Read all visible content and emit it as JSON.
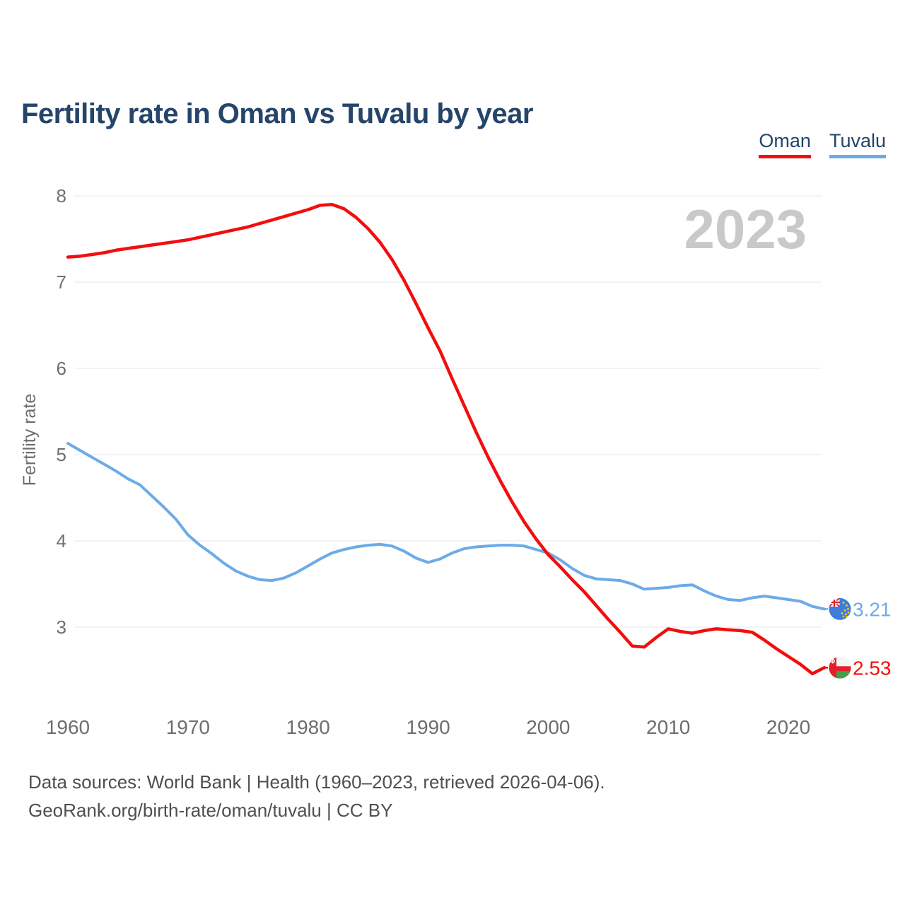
{
  "title": "Fertility rate in Oman vs Tuvalu by year",
  "legend": [
    {
      "label": "Oman",
      "color": "#f40d0d"
    },
    {
      "label": "Tuvalu",
      "color": "#6cabe8"
    }
  ],
  "footer": {
    "line1": "Data sources: World Bank | Health (1960–2023, retrieved 2026-04-06).",
    "line2": "GeoRank.org/birth-rate/oman/tuvalu | CC BY"
  },
  "chart_data": {
    "type": "line",
    "title": "Fertility rate in Oman vs Tuvalu by year",
    "xlabel": "",
    "ylabel": "Fertility rate",
    "watermark": "2023",
    "x_range": [
      1960,
      2023
    ],
    "x_interval": 1,
    "x_ticks": [
      1960,
      1970,
      1980,
      1990,
      2000,
      2010,
      2020
    ],
    "y_ticks": [
      8,
      7,
      6,
      5,
      4,
      3
    ],
    "ylim": [
      2.3,
      8.2
    ],
    "grid": true,
    "legend_position": "top-right",
    "colors": {
      "oman_red": "#f40d0d",
      "tuvalu_blue": "#6cabe8",
      "gridline": "#ececec",
      "axis_text": "#6e6e6e",
      "watermark_gray": "#c9c9c9"
    },
    "series": [
      {
        "name": "Tuvalu",
        "color": "#6cabe8",
        "values": [
          5.13,
          5.05,
          4.97,
          4.89,
          4.81,
          4.72,
          4.65,
          4.52,
          4.39,
          4.25,
          4.07,
          3.95,
          3.85,
          3.74,
          3.65,
          3.59,
          3.55,
          3.54,
          3.57,
          3.63,
          3.71,
          3.79,
          3.86,
          3.9,
          3.93,
          3.95,
          3.96,
          3.94,
          3.88,
          3.8,
          3.75,
          3.79,
          3.86,
          3.91,
          3.93,
          3.94,
          3.95,
          3.95,
          3.94,
          3.9,
          3.86,
          3.78,
          3.68,
          3.6,
          3.56,
          3.55,
          3.54,
          3.5,
          3.44,
          3.45,
          3.46,
          3.48,
          3.49,
          3.42,
          3.36,
          3.32,
          3.31,
          3.34,
          3.36,
          3.34,
          3.32,
          3.3,
          3.24,
          3.21
        ]
      },
      {
        "name": "Oman",
        "color": "#f40d0d",
        "values": [
          7.29,
          7.3,
          7.32,
          7.34,
          7.37,
          7.39,
          7.41,
          7.43,
          7.45,
          7.47,
          7.49,
          7.52,
          7.55,
          7.58,
          7.61,
          7.64,
          7.68,
          7.72,
          7.76,
          7.8,
          7.84,
          7.89,
          7.9,
          7.85,
          7.75,
          7.62,
          7.46,
          7.26,
          7.02,
          6.75,
          6.47,
          6.2,
          5.88,
          5.57,
          5.26,
          4.97,
          4.7,
          4.45,
          4.22,
          4.02,
          3.84,
          3.7,
          3.55,
          3.41,
          3.25,
          3.09,
          2.94,
          2.78,
          2.77,
          2.88,
          2.98,
          2.95,
          2.93,
          2.96,
          2.98,
          2.97,
          2.96,
          2.94,
          2.85,
          2.75,
          2.66,
          2.57,
          2.46,
          2.53
        ]
      }
    ],
    "end_labels": [
      {
        "series": "Tuvalu",
        "value": "3.21"
      },
      {
        "series": "Oman",
        "value": "2.53"
      }
    ]
  }
}
